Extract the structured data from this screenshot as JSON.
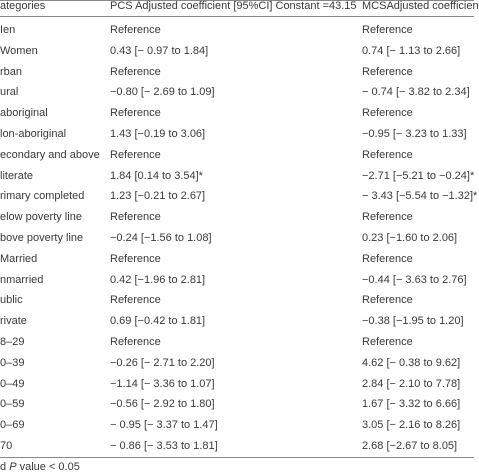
{
  "table": {
    "header": [
      "ategories",
      "PCS Adjusted coefficient [95%CI] Constant =43.15",
      "MCSAdjusted coefficien"
    ],
    "rows": [
      [
        "Ien",
        "Reference",
        "Reference"
      ],
      [
        "Women",
        "0.43 [− 0.97 to 1.84]",
        "0.74 [− 1.13 to 2.66]"
      ],
      [
        "rban",
        "Reference",
        "Reference"
      ],
      [
        "ural",
        "−0.80 [− 2.69 to 1.09]",
        "− 0.74 [− 3.82 to 2.34]"
      ],
      [
        "aboriginal",
        "Reference",
        "Reference"
      ],
      [
        "lon-aboriginal",
        "1.43 [−0.19 to 3.06]",
        "−0.95 [− 3.23 to 1.33]"
      ],
      [
        "econdary and above",
        "Reference",
        "Reference"
      ],
      [
        "literate",
        "1.84 [0.14 to 3.54]*",
        "−2.71 [−5.21 to −0.24]*"
      ],
      [
        "rimary completed",
        "1.23 [−0.21 to 2.67]",
        "− 3.43 [−5.54 to −1.32]*"
      ],
      [
        "elow poverty line",
        "Reference",
        "Reference"
      ],
      [
        "bove poverty line",
        "−0.24 [−1.56 to 1.08]",
        "0.23 [−1.60 to 2.06]"
      ],
      [
        "Married",
        "Reference",
        "Reference"
      ],
      [
        "nmarried",
        "0.42 [−1.96 to 2.81]",
        "−0.44 [− 3.63 to 2.76]"
      ],
      [
        "ublic",
        "Reference",
        "Reference"
      ],
      [
        "rivate",
        "0.69 [−0.42 to 1.81]",
        "−0.38 [−1.95 to 1.20]"
      ],
      [
        "8–29",
        "Reference",
        "Reference"
      ],
      [
        "0–39",
        "−0.26 [− 2.71 to 2.20]",
        "4.62 [− 0.38 to 9.62]"
      ],
      [
        "0–49",
        "−1.14 [− 3.36 to 1.07]",
        "2.84 [− 2.10 to 7.78]"
      ],
      [
        "0–59",
        "−0.56 [− 2.92 to 1.80]",
        "1.67 [− 3.32 to 6.66]"
      ],
      [
        "0–69",
        "− 0.95 [− 3.37 to 1.47]",
        "3.05 [− 2.16 to 8.26]"
      ],
      [
        "70",
        "− 0.86 [− 3.53 to 1.81]",
        "2.68 [−2.67 to 8.05]"
      ]
    ]
  },
  "footnote": [
    "d ",
    "P",
    " value < 0.05"
  ]
}
